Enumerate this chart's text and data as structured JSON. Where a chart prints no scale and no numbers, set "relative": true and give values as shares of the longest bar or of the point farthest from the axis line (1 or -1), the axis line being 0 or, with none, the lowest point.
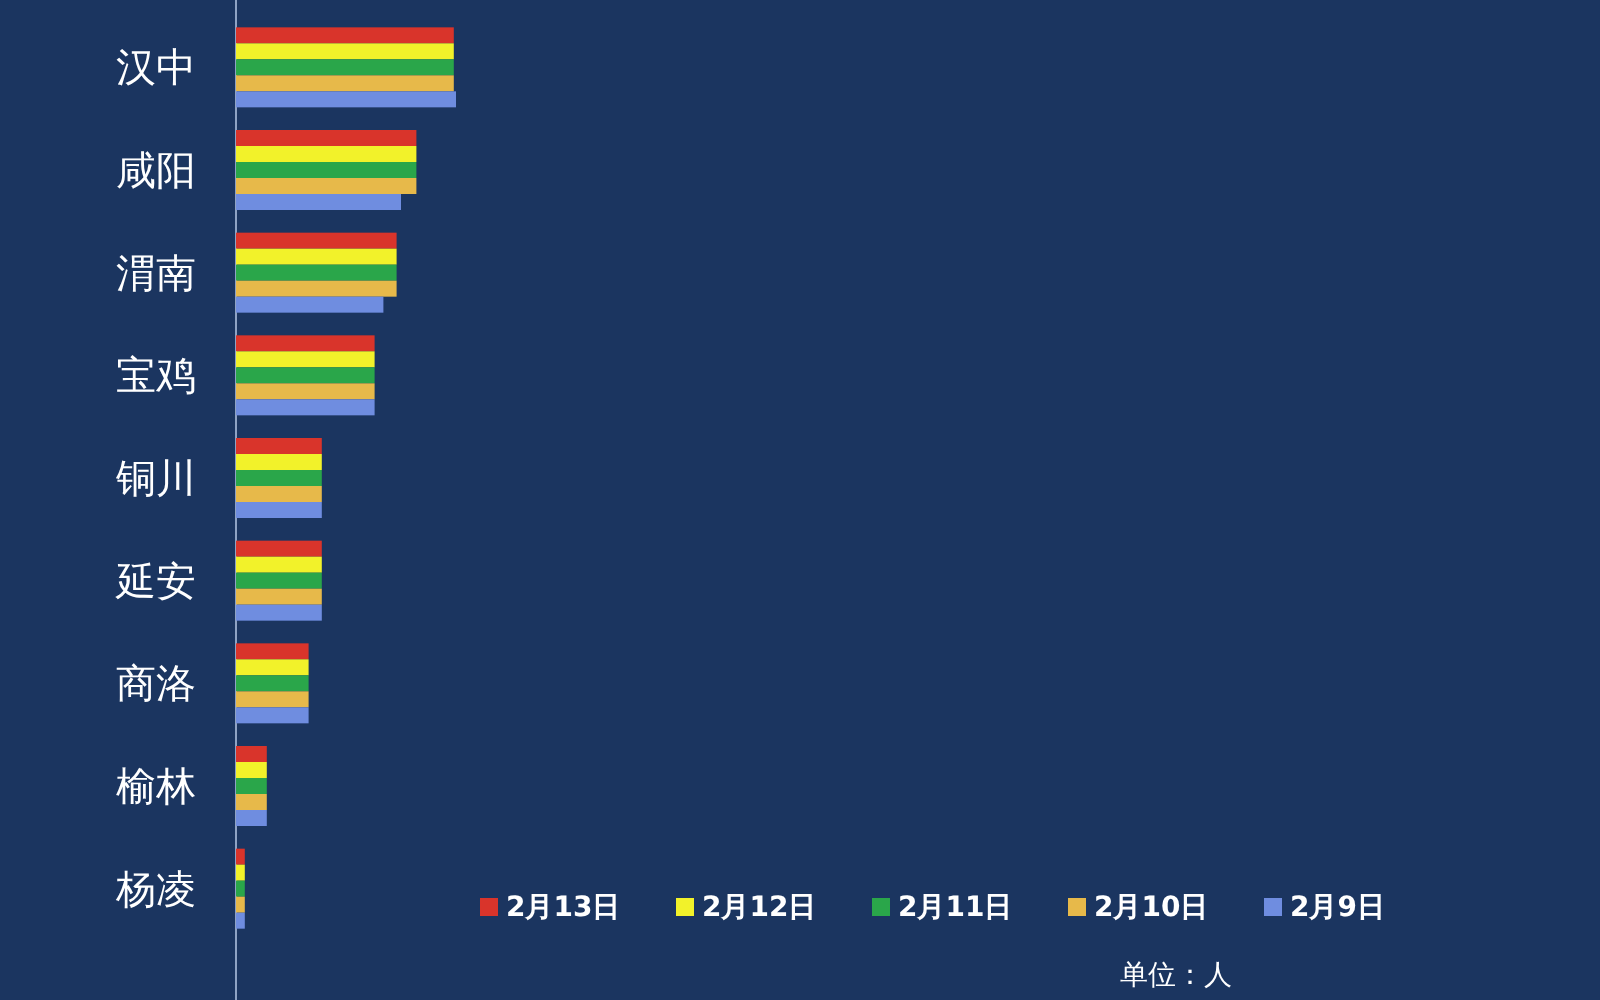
{
  "chart_data": {
    "type": "bar",
    "orientation": "horizontal",
    "relative": true,
    "categories": [
      "汉中",
      "咸阳",
      "渭南",
      "宝鸡",
      "铜川",
      "延安",
      "商洛",
      "榆林",
      "杨凌"
    ],
    "series": [
      {
        "name": "2月13日",
        "color": "#d9342b",
        "values": [
          0.99,
          0.82,
          0.73,
          0.63,
          0.39,
          0.39,
          0.33,
          0.14,
          0.04
        ]
      },
      {
        "name": "2月12日",
        "color": "#f2f22a",
        "values": [
          0.99,
          0.82,
          0.73,
          0.63,
          0.39,
          0.39,
          0.33,
          0.14,
          0.04
        ]
      },
      {
        "name": "2月11日",
        "color": "#2aa64a",
        "values": [
          0.99,
          0.82,
          0.73,
          0.63,
          0.39,
          0.39,
          0.33,
          0.14,
          0.04
        ]
      },
      {
        "name": "2月10日",
        "color": "#e7b94a",
        "values": [
          0.99,
          0.82,
          0.73,
          0.63,
          0.39,
          0.39,
          0.33,
          0.14,
          0.04
        ]
      },
      {
        "name": "2月9日",
        "color": "#6f8de0",
        "values": [
          1,
          0.75,
          0.67,
          0.63,
          0.39,
          0.39,
          0.33,
          0.14,
          0.04
        ]
      }
    ],
    "legend": "bottom right",
    "annotations": [
      "单位：人"
    ]
  }
}
